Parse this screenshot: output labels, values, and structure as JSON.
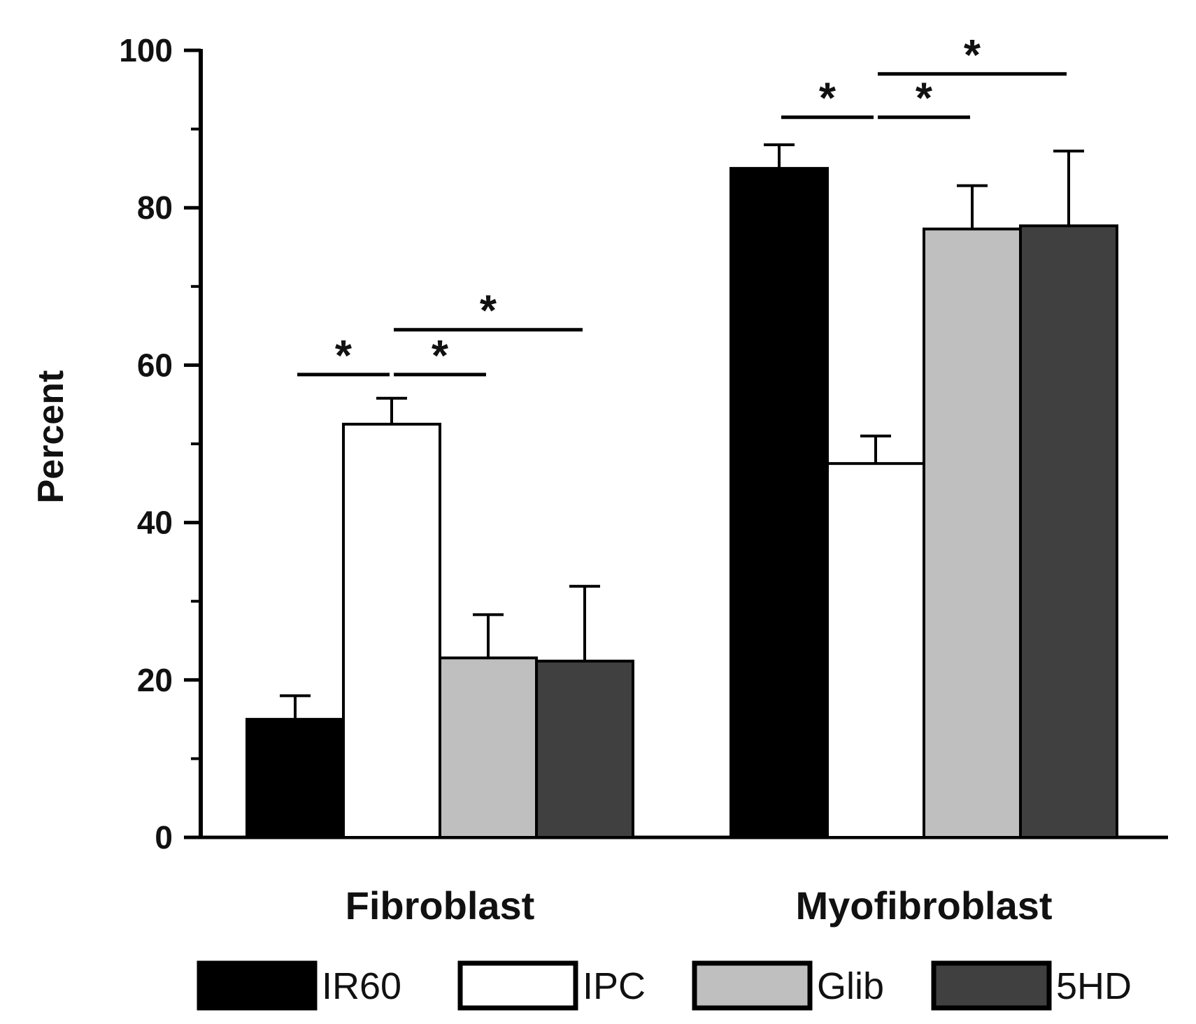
{
  "chart_data": {
    "type": "bar",
    "title": "",
    "xlabel": "",
    "ylabel": "Percent",
    "ylim": [
      0,
      100
    ],
    "yticks_major": [
      0,
      20,
      40,
      60,
      80,
      100
    ],
    "yticks_minor": [
      10,
      30,
      50,
      70,
      90
    ],
    "categories": [
      "Fibroblast",
      "Myofibroblast"
    ],
    "series": [
      {
        "name": "IR60",
        "color": "#000000",
        "values": [
          15,
          85
        ],
        "errors": [
          3,
          3
        ]
      },
      {
        "name": "IPC",
        "color": "#ffffff",
        "values": [
          52.5,
          47.5
        ],
        "errors": [
          3.3,
          3.5
        ]
      },
      {
        "name": "Glib",
        "color": "#bfbfbf",
        "values": [
          22.8,
          77.3
        ],
        "errors": [
          5.5,
          5.5
        ]
      },
      {
        "name": "5HD",
        "color": "#404040",
        "values": [
          22.4,
          77.7
        ],
        "errors": [
          9.5,
          9.5
        ]
      }
    ],
    "significance": [
      {
        "category": 0,
        "from": 0,
        "to": 1,
        "level": 58.8,
        "label": "*"
      },
      {
        "category": 0,
        "from": 1,
        "to": 2,
        "level": 58.8,
        "label": "*"
      },
      {
        "category": 0,
        "from": 1,
        "to": 3,
        "level": 64.5,
        "label": "*"
      },
      {
        "category": 1,
        "from": 0,
        "to": 1,
        "level": 91.5,
        "label": "*"
      },
      {
        "category": 1,
        "from": 1,
        "to": 2,
        "level": 91.5,
        "label": "*"
      },
      {
        "category": 1,
        "from": 1,
        "to": 3,
        "level": 97.0,
        "label": "*"
      }
    ],
    "legend_position": "bottom"
  }
}
